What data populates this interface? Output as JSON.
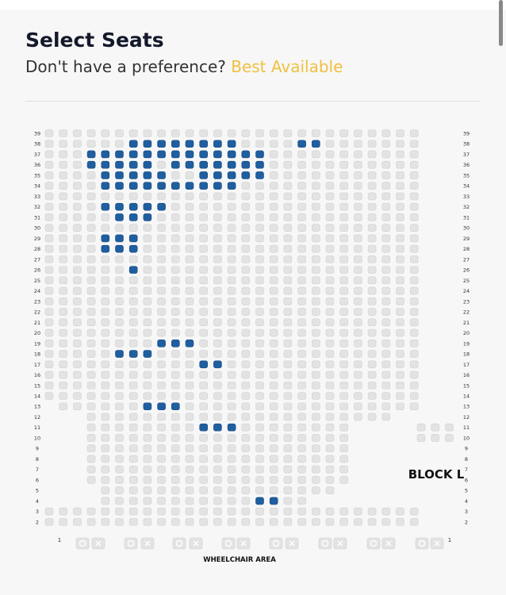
{
  "header": {
    "title": "Select Seats",
    "subtitle": "Don't have a preference?",
    "link": "Best Available"
  },
  "seat_map": {
    "rows": [
      "39",
      "38",
      "37",
      "36",
      "35",
      "34",
      "33",
      "32",
      "31",
      "30",
      "29",
      "28",
      "27",
      "26",
      "25",
      "24",
      "23",
      "22",
      "21",
      "20",
      "19",
      "18",
      "17",
      "16",
      "15",
      "14",
      "13",
      "12",
      "11",
      "10",
      "9",
      "8",
      "7",
      "6",
      "5",
      "4",
      "3",
      "2"
    ],
    "block_label": "BLOCK L",
    "end_labels": [
      "1",
      "1"
    ],
    "area_label": "WHEELCHAIR AREA"
  }
}
